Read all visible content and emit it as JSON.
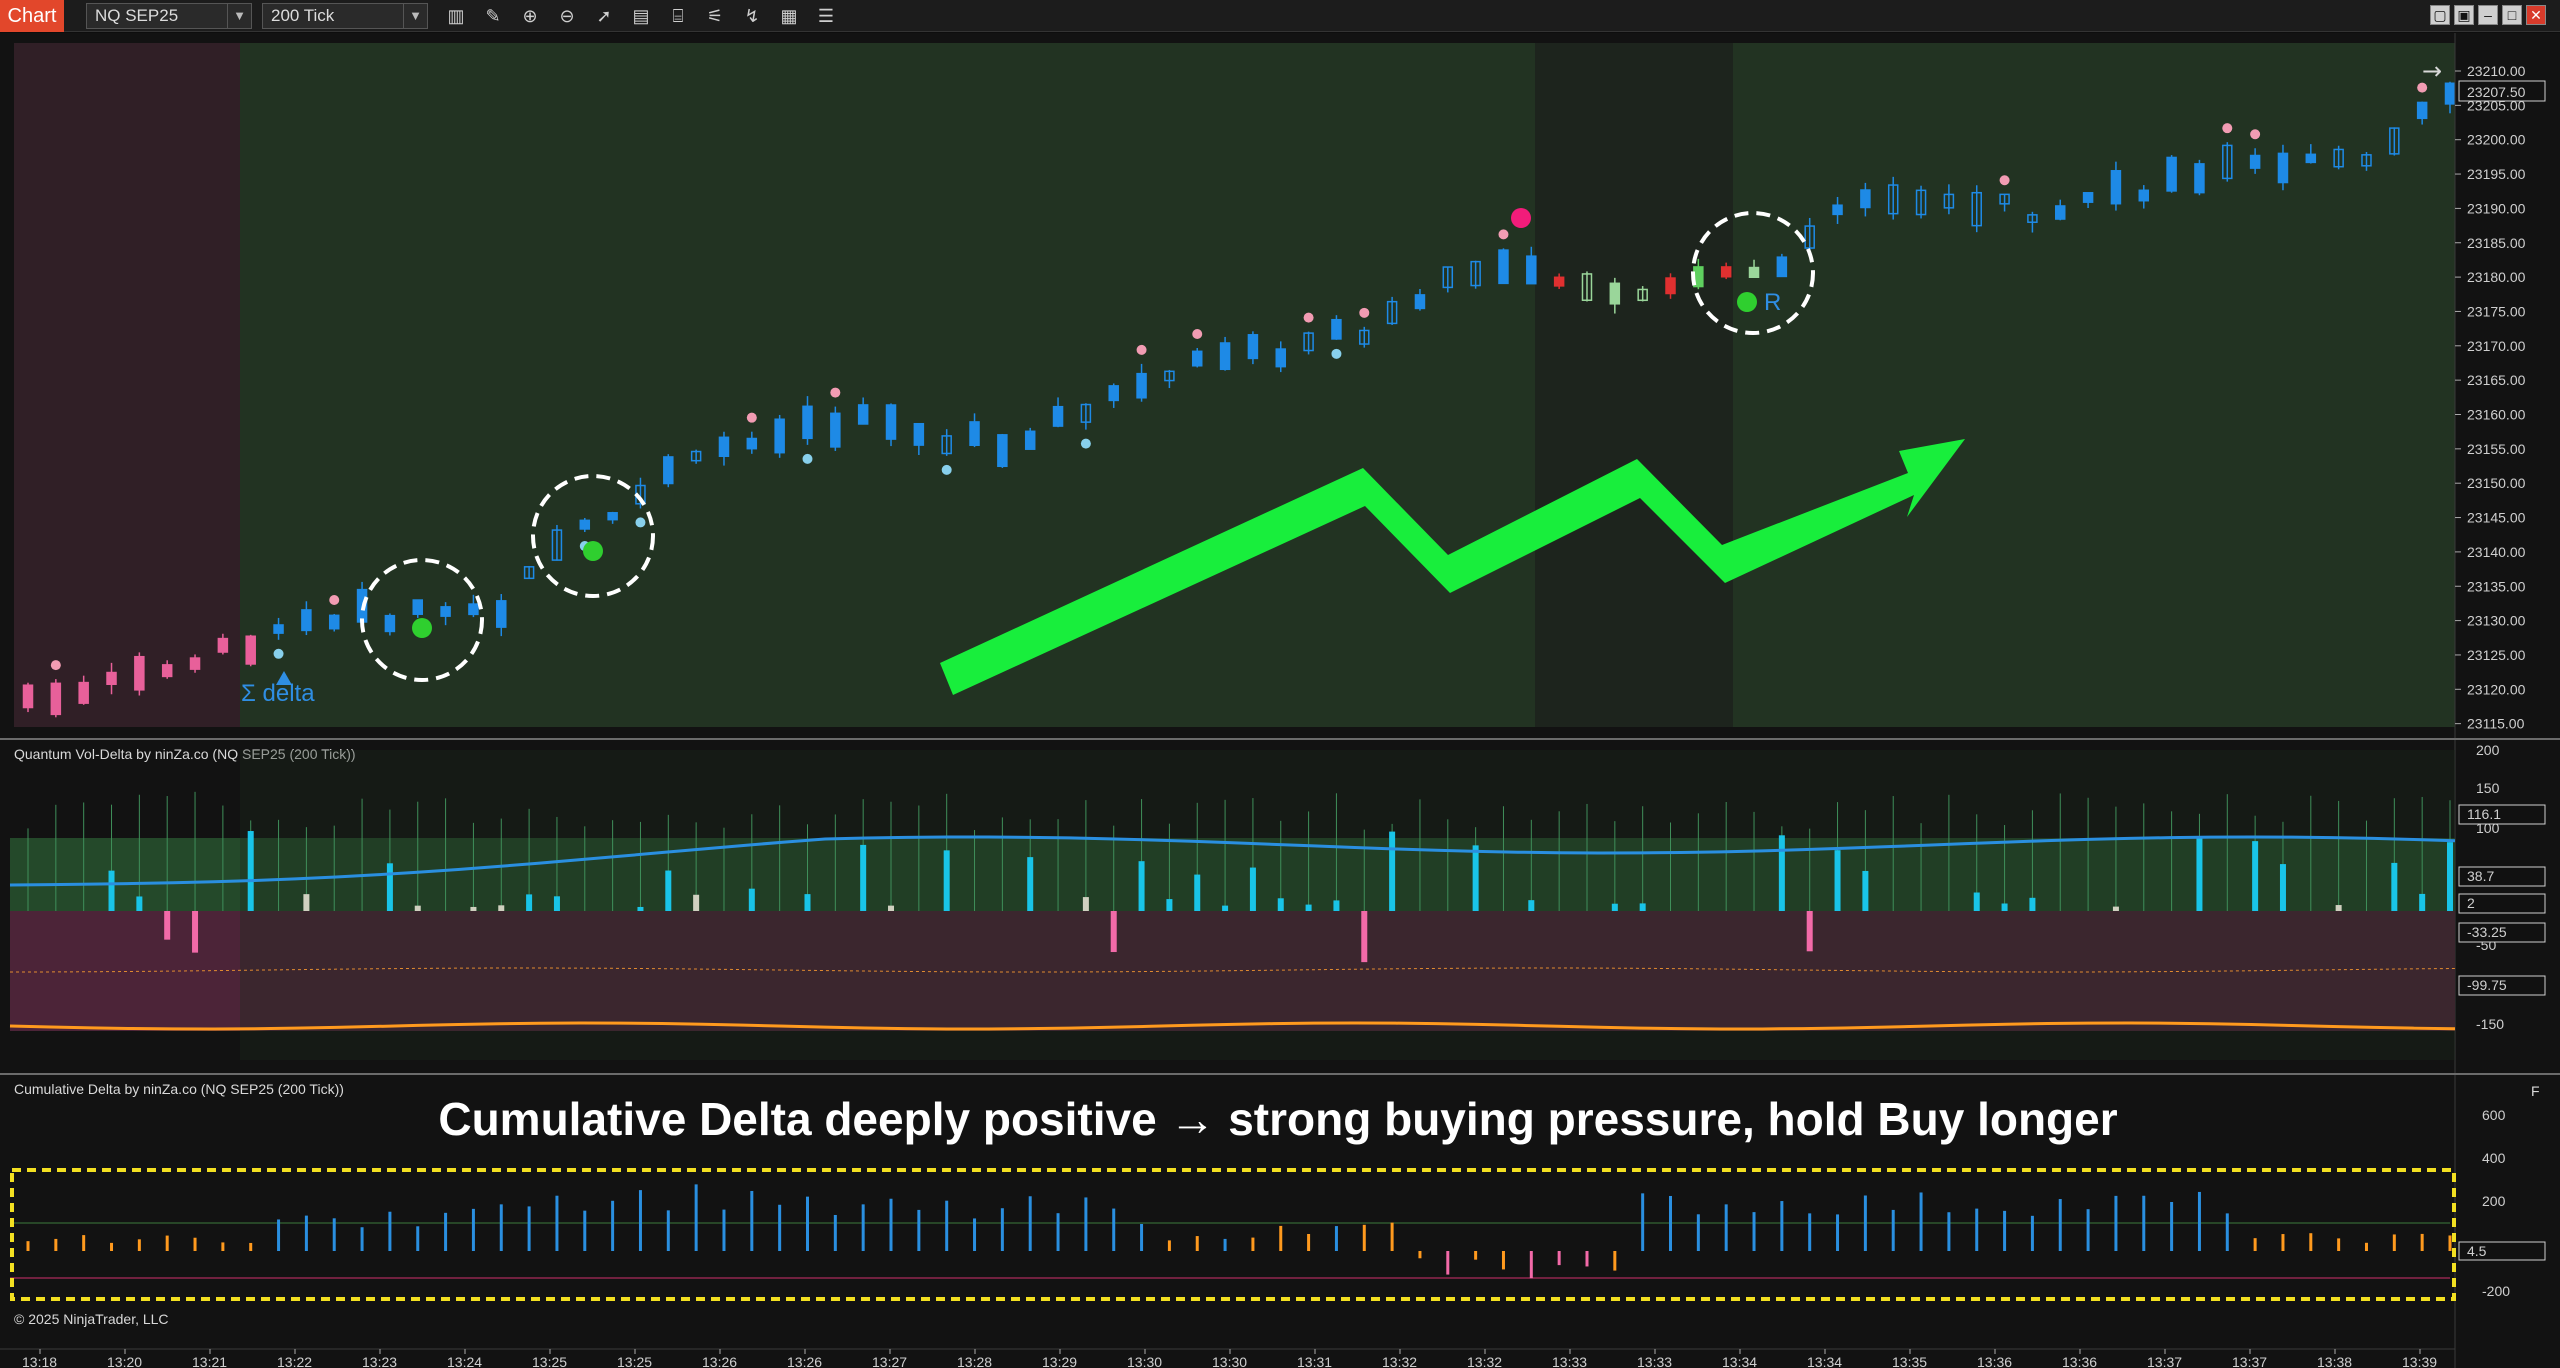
{
  "toolbar": {
    "tab_label": "Chart",
    "instrument": "NQ SEP25",
    "interval": "200 Tick",
    "tool_icons": [
      "bar-style-icon",
      "pencil-icon",
      "zoom-in-icon",
      "zoom-out-icon",
      "pointer-icon",
      "data-box-icon",
      "properties-icon",
      "indicators-icon",
      "strategies-icon",
      "templates-icon",
      "list-icon"
    ],
    "window_buttons": [
      "restore-icon",
      "tile-icon",
      "minimize-icon",
      "maximize-icon",
      "close-icon"
    ]
  },
  "colors": {
    "background": "#121212",
    "bull_zone": "#223322",
    "bear_zone": "#301f26",
    "candle_up": "#1e8ae6",
    "candle_down_pink": "#e8609a",
    "dot_pink": "#f29cb3",
    "dot_cyan": "#88d0ec",
    "signal_green": "#2fcf2f",
    "arrow_green": "#18ee3c",
    "annotation_box": "#f3e021"
  },
  "price_panel": {
    "axis_labels": [
      "23210.00",
      "23205.00",
      "23200.00",
      "23195.00",
      "23190.00",
      "23185.00",
      "23180.00",
      "23175.00",
      "23170.00",
      "23165.00",
      "23160.00",
      "23155.00",
      "23150.00",
      "23145.00",
      "23140.00",
      "23135.00",
      "23130.00",
      "23125.00",
      "23120.00",
      "23115.00"
    ],
    "last_price": "23207.50",
    "delta_label": "Σ delta",
    "reversal_label": "R",
    "scroll_arrow": "→"
  },
  "vol_delta_panel": {
    "title": "Quantum Vol-Delta by ninZa.co (NQ SEP25 (200 Tick))",
    "axis_labels": [
      "200",
      "150",
      "100",
      "-50",
      "-150"
    ],
    "markers": [
      "116.1",
      "38.7",
      "2",
      "-33.25",
      "-99.75"
    ]
  },
  "cum_delta_panel": {
    "title": "Cumulative Delta by ninZa.co (NQ SEP25 (200 Tick))",
    "annotation": "Cumulative Delta deeply positive → strong buying pressure, hold Buy longer",
    "axis_labels": [
      "600",
      "400",
      "200",
      "-200"
    ],
    "marker": "4.5",
    "corner_label": "F"
  },
  "time_axis": [
    "13:18",
    "13:20",
    "13:21",
    "13:22",
    "13:23",
    "13:24",
    "13:25",
    "13:25",
    "13:26",
    "13:26",
    "13:27",
    "13:28",
    "13:29",
    "13:30",
    "13:30",
    "13:31",
    "13:32",
    "13:32",
    "13:33",
    "13:33",
    "13:34",
    "13:34",
    "13:35",
    "13:36",
    "13:36",
    "13:37",
    "13:37",
    "13:38",
    "13:39"
  ],
  "copyright": "© 2025 NinjaTrader, LLC"
}
